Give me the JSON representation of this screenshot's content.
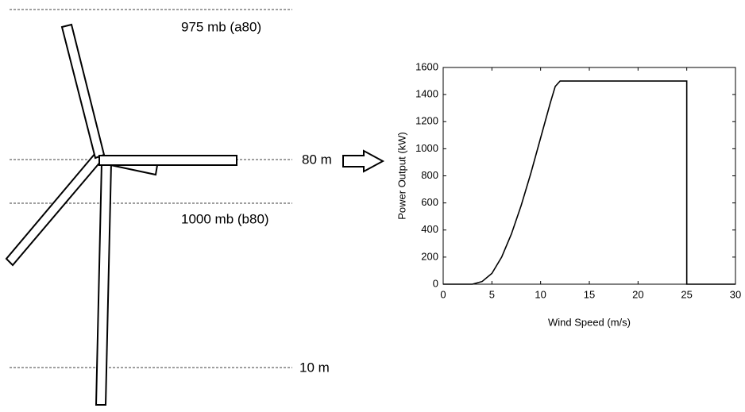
{
  "levels": [
    "975 mb (a80)",
    "80 m",
    "1000 mb (b80)",
    "10 m"
  ],
  "chart_data": {
    "type": "line",
    "xlabel": "Wind Speed (m/s)",
    "ylabel": "Power Output (kW)",
    "x": [
      0,
      3,
      4,
      5,
      6,
      7,
      8,
      9,
      10,
      11,
      11.5,
      12,
      25,
      25,
      30
    ],
    "values": [
      0,
      0,
      20,
      80,
      200,
      370,
      580,
      820,
      1080,
      1340,
      1460,
      1500,
      1500,
      0,
      0
    ],
    "color": "#000000",
    "xlim": [
      0,
      30
    ],
    "xticks": [
      0,
      5,
      10,
      15,
      20,
      25,
      30
    ],
    "ylim": [
      0,
      1600
    ],
    "yticks": [
      0,
      200,
      400,
      600,
      800,
      1000,
      1200,
      1400,
      1600
    ]
  }
}
